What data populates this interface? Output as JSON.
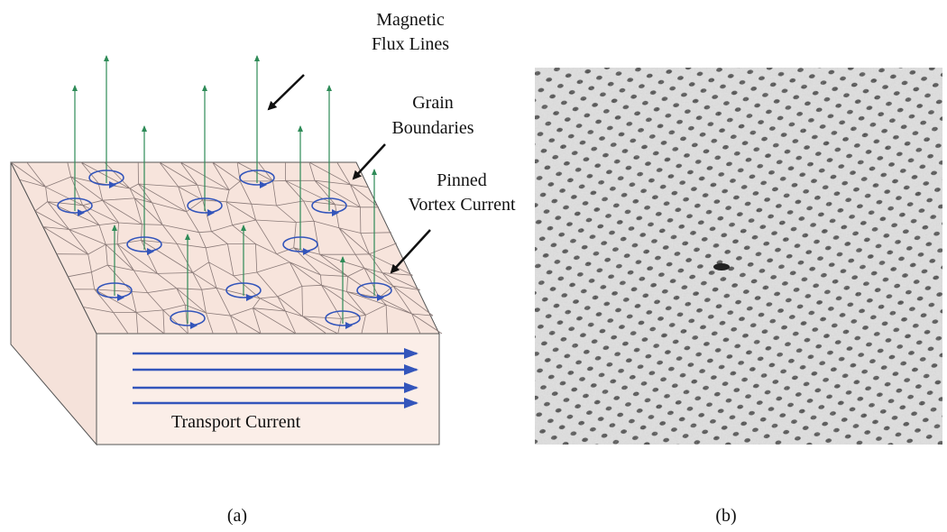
{
  "panel_a": {
    "labels": [
      {
        "lines": [
          "Magnetic",
          "Flux Lines"
        ]
      },
      {
        "lines": [
          "Grain",
          "Boundaries"
        ]
      },
      {
        "lines": [
          "Pinned",
          "Vortex Current"
        ]
      }
    ],
    "transport_label": "Transport Current",
    "caption": "(a)"
  },
  "panel_b": {
    "caption": "(b)"
  }
}
